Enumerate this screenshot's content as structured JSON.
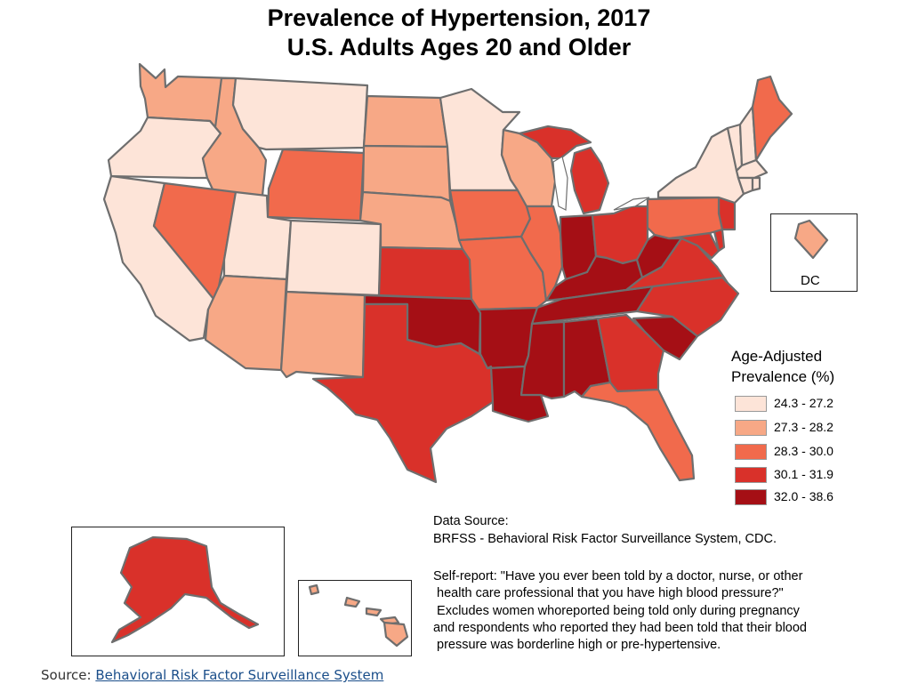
{
  "title_line1": "Prevalence of Hypertension, 2017",
  "title_line2": "U.S. Adults Ages 20 and Older",
  "legend": {
    "title_line1": "Age-Adjusted",
    "title_line2": "Prevalence (%)",
    "classes": [
      {
        "label": "24.3 - 27.2",
        "color": "#fde4d8"
      },
      {
        "label": "27.3 - 28.2",
        "color": "#f7a886"
      },
      {
        "label": "28.3 - 30.0",
        "color": "#f16a4c"
      },
      {
        "label": "30.1 - 31.9",
        "color": "#d9312a"
      },
      {
        "label": "32.0 - 38.6",
        "color": "#a50f15"
      }
    ]
  },
  "dc_label": "DC",
  "data_source": {
    "line1": "Data Source:",
    "line2": "BRFSS - Behavioral Risk Factor Surveillance System, CDC."
  },
  "self_report": {
    "line1": "Self-report: \"Have you ever been told by a doctor, nurse, or other",
    "line2": " health care professional that you have high blood pressure?\"",
    "line3": " Excludes women whoreported being told only during pregnancy",
    "line4": "and respondents who reported they had been told that their blood",
    "line5": " pressure was borderline high or pre-hypertensive."
  },
  "source": {
    "prefix": "Source: ",
    "link_text": "Behavioral Risk Factor Surveillance System"
  },
  "state_classes": {
    "WA": 2,
    "OR": 1,
    "CA": 1,
    "ID": 2,
    "NV": 3,
    "MT": 1,
    "WY": 3,
    "UT": 1,
    "AZ": 2,
    "CO": 1,
    "NM": 2,
    "ND": 2,
    "SD": 2,
    "NE": 2,
    "KS": 4,
    "OK": 5,
    "TX": 4,
    "MN": 1,
    "IA": 3,
    "MO": 3,
    "AR": 5,
    "LA": 5,
    "WI": 2,
    "IL": 3,
    "MI": 4,
    "IN": 5,
    "OH": 4,
    "KY": 5,
    "TN": 5,
    "MS": 5,
    "AL": 5,
    "GA": 4,
    "FL": 3,
    "SC": 5,
    "NC": 4,
    "VA": 4,
    "WV": 5,
    "PA": 3,
    "NY": 1,
    "VT": 1,
    "NH": 1,
    "ME": 3,
    "MA": 1,
    "CT": 1,
    "RI": 1,
    "NJ": 4,
    "DE": 4,
    "MD": 4,
    "DC": 2,
    "AK": 4,
    "HI": 2
  }
}
